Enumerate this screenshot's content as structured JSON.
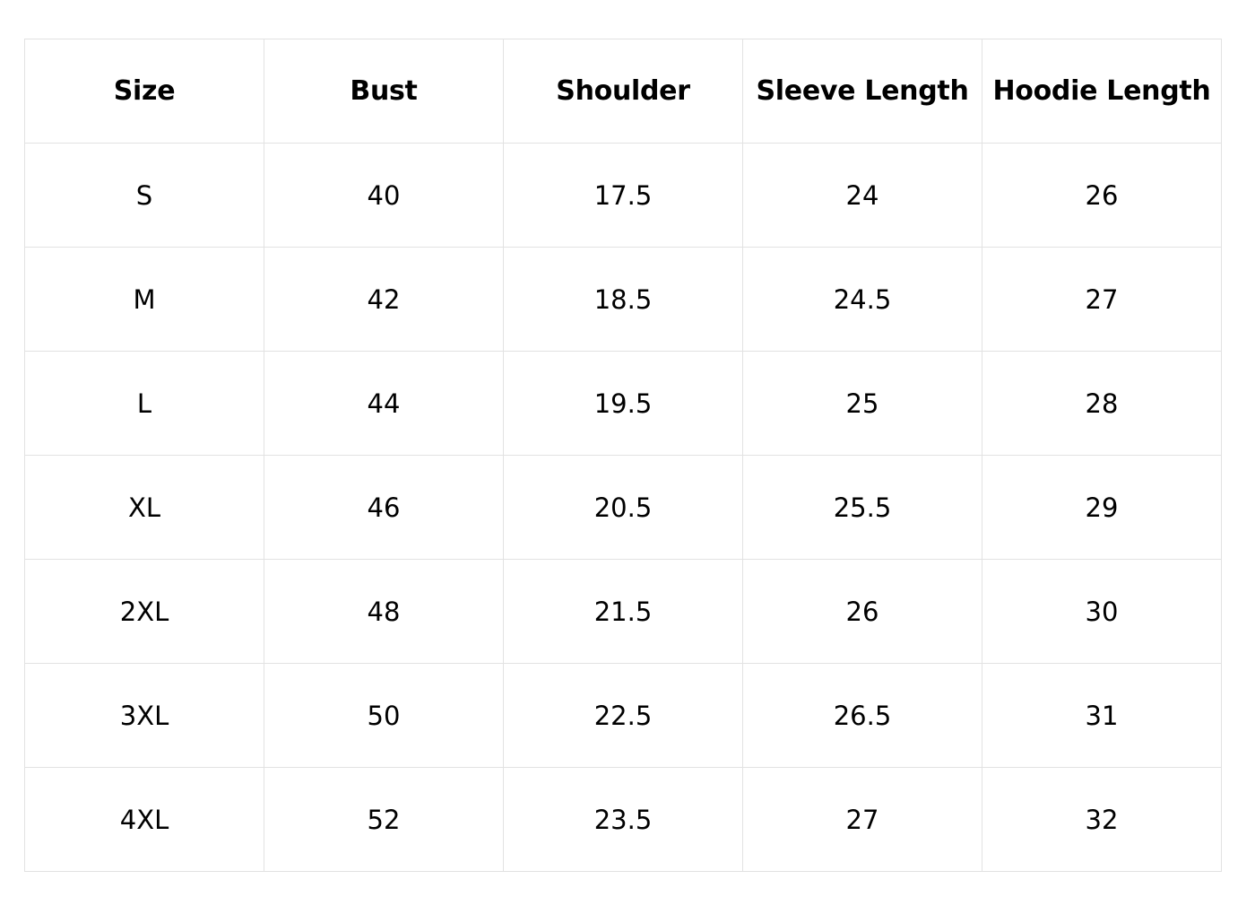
{
  "table": {
    "headers": [
      "Size",
      "Bust",
      "Shoulder",
      "Sleeve Length",
      "Hoodie Length"
    ],
    "rows": [
      [
        "S",
        "40",
        "17.5",
        "24",
        "26"
      ],
      [
        "M",
        "42",
        "18.5",
        "24.5",
        "27"
      ],
      [
        "L",
        "44",
        "19.5",
        "25",
        "28"
      ],
      [
        "XL",
        "46",
        "20.5",
        "25.5",
        "29"
      ],
      [
        "2XL",
        "48",
        "21.5",
        "26",
        "30"
      ],
      [
        "3XL",
        "50",
        "22.5",
        "26.5",
        "31"
      ],
      [
        "4XL",
        "52",
        "23.5",
        "27",
        "32"
      ]
    ]
  },
  "colors": {
    "border": "#e2e2e2",
    "text": "#000000",
    "background": "#ffffff"
  }
}
